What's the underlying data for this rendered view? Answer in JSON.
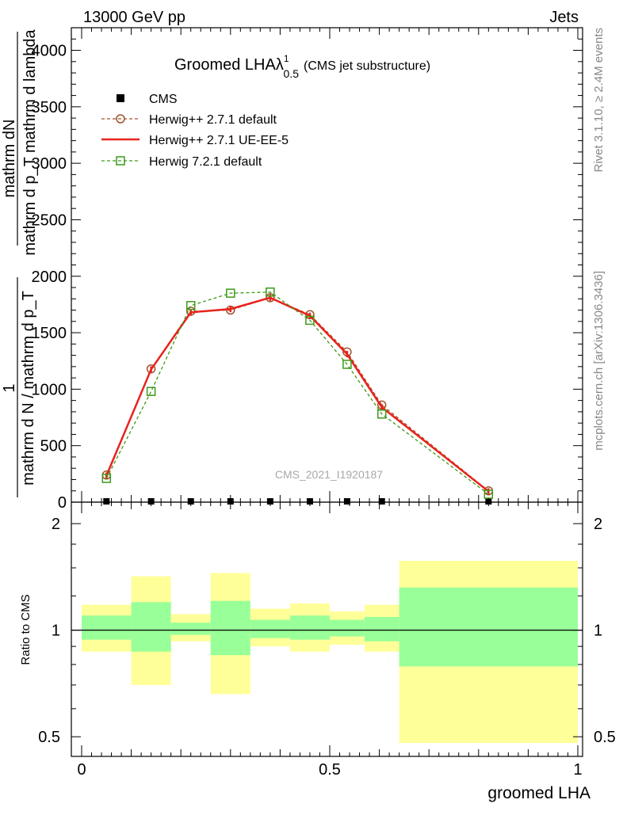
{
  "header": {
    "left": "13000 GeV pp",
    "right": "Jets"
  },
  "side": {
    "rivet": "Rivet 3.1.10, ≥ 2.4M events",
    "mcplots": "mcplots.cern.ch [arXiv:1306.3436]"
  },
  "chart_data": [
    {
      "type": "line",
      "title_main": "Groomed LHAλ",
      "title_sup": "1",
      "title_sub": "0.5",
      "title_note": "(CMS jet substructure)",
      "watermark": "CMS_2021_I1920187",
      "ylabel_top_numerator": "mathrm dN",
      "ylabel_top_denominator": "mathrm d p_T mathrm d lambda",
      "ylabel_bottom_numerator": "1",
      "ylabel_bottom_denominator": "mathrm d N / mathrm d p_T",
      "xlim": [
        0,
        1
      ],
      "ylim": [
        0,
        4200
      ],
      "yticks": [
        0,
        500,
        1000,
        1500,
        2000,
        2500,
        3000,
        3500,
        4000
      ],
      "ytick_labels": [
        "0",
        "500",
        "1000",
        "1500",
        "2000",
        "2500",
        "3000",
        "3500",
        "4000"
      ],
      "grid": false,
      "legend_position": "top-left",
      "series": [
        {
          "name": "CMS",
          "color": "#000000",
          "marker": "square",
          "line": "none",
          "x": [
            0.05,
            0.14,
            0.22,
            0.3,
            0.38,
            0.46,
            0.535,
            0.605,
            0.82
          ],
          "y": [
            0,
            0,
            0,
            0,
            0,
            0,
            0,
            0,
            0
          ]
        },
        {
          "name": "Herwig++ 2.7.1 default",
          "color": "#a0522d",
          "marker": "circle",
          "line": "dashed",
          "x": [
            0.05,
            0.14,
            0.22,
            0.3,
            0.38,
            0.46,
            0.535,
            0.605,
            0.82
          ],
          "y": [
            240,
            1180,
            1690,
            1700,
            1810,
            1660,
            1330,
            860,
            100
          ]
        },
        {
          "name": "Herwig++ 2.7.1 UE-EE-5",
          "color": "#e8231c",
          "marker": "none",
          "line": "solid",
          "x": [
            0.05,
            0.14,
            0.22,
            0.3,
            0.38,
            0.46,
            0.535,
            0.605,
            0.82
          ],
          "y": [
            235,
            1175,
            1680,
            1710,
            1810,
            1650,
            1310,
            840,
            95
          ]
        },
        {
          "name": "Herwig 7.2.1 default",
          "color": "#3c9a18",
          "marker": "open-square",
          "line": "dashed",
          "x": [
            0.05,
            0.14,
            0.22,
            0.3,
            0.38,
            0.46,
            0.535,
            0.605,
            0.82
          ],
          "y": [
            210,
            980,
            1740,
            1850,
            1860,
            1610,
            1220,
            780,
            70
          ]
        }
      ]
    },
    {
      "type": "area",
      "ylabel": "Ratio to CMS",
      "xlabel": "groomed LHA",
      "xlim": [
        0,
        1
      ],
      "ylim": [
        0.44,
        2.3
      ],
      "log_y": true,
      "yticks": [
        0.5,
        1,
        2
      ],
      "ytick_labels": [
        "0.5",
        "1",
        "2"
      ],
      "xticks": [
        0,
        0.5,
        1
      ],
      "xtick_labels": [
        "0",
        "0.5",
        "1"
      ],
      "band_colors": {
        "inner": "#99ff99",
        "outer": "#ffff99"
      },
      "bands": [
        {
          "x0": 0.0,
          "x1": 0.1,
          "inner": [
            0.94,
            1.1
          ],
          "outer": [
            0.87,
            1.18
          ]
        },
        {
          "x0": 0.1,
          "x1": 0.18,
          "inner": [
            0.87,
            1.2
          ],
          "outer": [
            0.7,
            1.42
          ]
        },
        {
          "x0": 0.18,
          "x1": 0.26,
          "inner": [
            0.97,
            1.05
          ],
          "outer": [
            0.93,
            1.11
          ]
        },
        {
          "x0": 0.26,
          "x1": 0.34,
          "inner": [
            0.85,
            1.21
          ],
          "outer": [
            0.66,
            1.45
          ]
        },
        {
          "x0": 0.34,
          "x1": 0.42,
          "inner": [
            0.95,
            1.07
          ],
          "outer": [
            0.9,
            1.15
          ]
        },
        {
          "x0": 0.42,
          "x1": 0.5,
          "inner": [
            0.94,
            1.1
          ],
          "outer": [
            0.87,
            1.19
          ]
        },
        {
          "x0": 0.5,
          "x1": 0.57,
          "inner": [
            0.96,
            1.07
          ],
          "outer": [
            0.91,
            1.13
          ]
        },
        {
          "x0": 0.57,
          "x1": 0.64,
          "inner": [
            0.93,
            1.09
          ],
          "outer": [
            0.87,
            1.18
          ]
        },
        {
          "x0": 0.64,
          "x1": 1.0,
          "inner": [
            0.79,
            1.32
          ],
          "outer": [
            0.48,
            1.57
          ]
        }
      ]
    }
  ]
}
